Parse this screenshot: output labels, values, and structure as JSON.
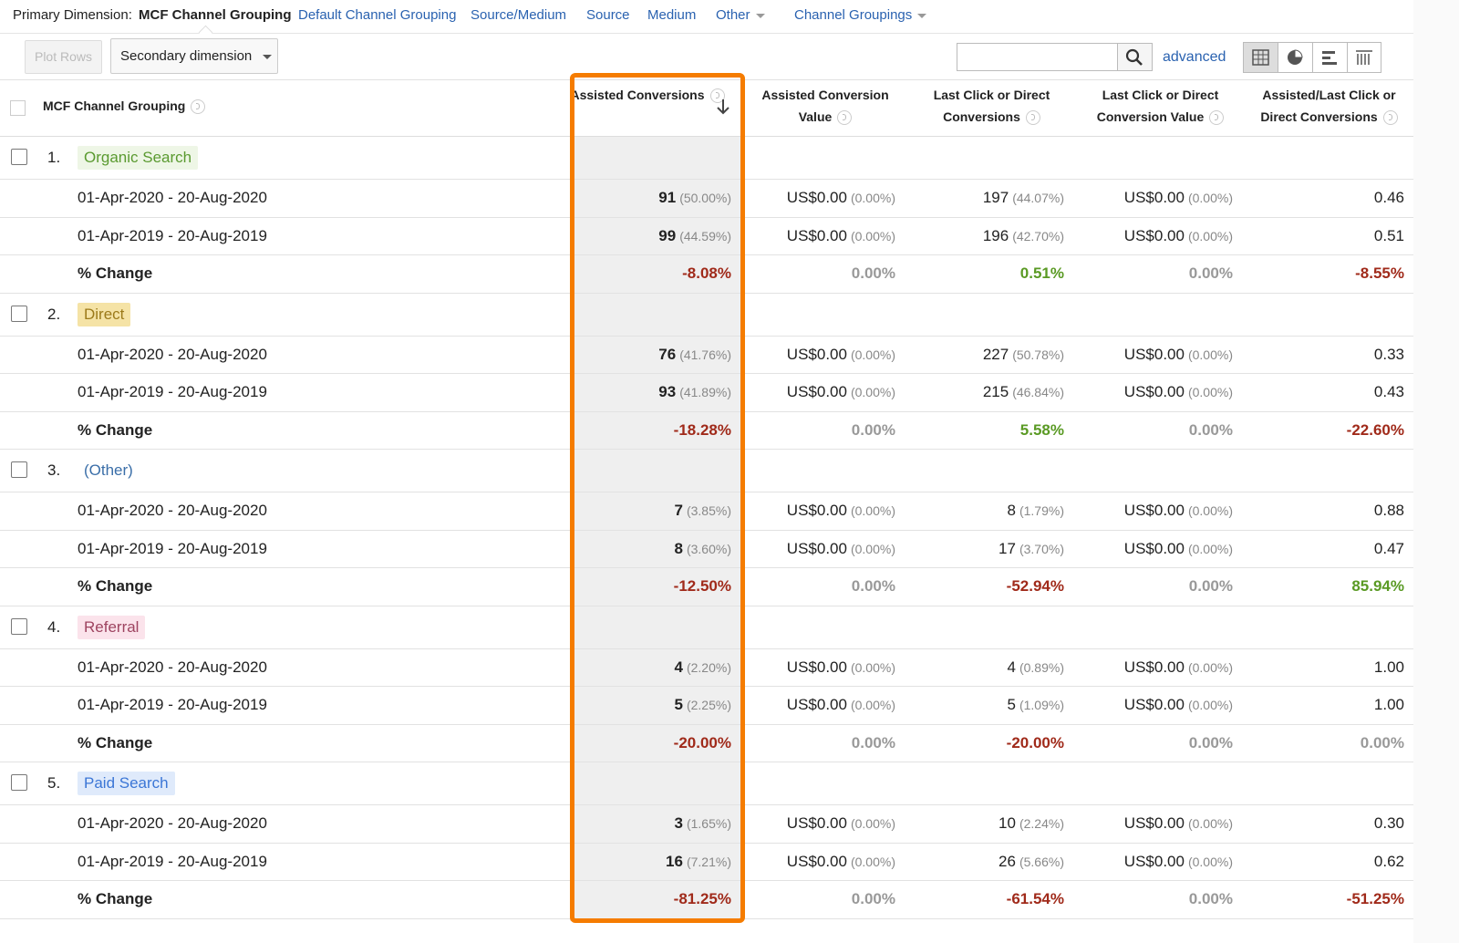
{
  "toolbar": {
    "primary_label": "Primary Dimension:",
    "active": "MCF Channel Grouping",
    "links": [
      "Default Channel Grouping",
      "Source/Medium",
      "Source",
      "Medium"
    ],
    "other": "Other",
    "channel_groupings": "Channel Groupings"
  },
  "controls": {
    "plot_rows": "Plot Rows",
    "secondary": "Secondary dimension",
    "advanced": "advanced"
  },
  "table": {
    "columns": [
      "MCF Channel Grouping",
      "Assisted Conversions",
      "Assisted Conversion Value",
      "Last Click or Direct Conversions",
      "Last Click or Direct Conversion Value",
      "Assisted/Last Click or Direct Conversions"
    ],
    "groups": [
      {
        "index": "1.",
        "name": "Organic Search",
        "badge_bg": "#eef6e6",
        "badge_color": "#5a9a30",
        "rows": [
          {
            "label": "01-Apr-2020 - 20-Aug-2020",
            "cells": [
              [
                "91",
                "(50.00%)"
              ],
              [
                "US$0.00",
                "(0.00%)"
              ],
              [
                "197",
                "(44.07%)"
              ],
              [
                "US$0.00",
                "(0.00%)"
              ],
              [
                "0.46"
              ]
            ]
          },
          {
            "label": "01-Apr-2019 - 20-Aug-2019",
            "cells": [
              [
                "99",
                "(44.59%)"
              ],
              [
                "US$0.00",
                "(0.00%)"
              ],
              [
                "196",
                "(42.70%)"
              ],
              [
                "US$0.00",
                "(0.00%)"
              ],
              [
                "0.51"
              ]
            ]
          }
        ],
        "change": {
          "label": "% Change",
          "cells": [
            "-8.08%",
            "0.00%",
            "0.51%",
            "0.00%",
            "-8.55%"
          ]
        }
      },
      {
        "index": "2.",
        "name": "Direct",
        "badge_bg": "#f5e3a6",
        "badge_color": "#9c7a1a",
        "rows": [
          {
            "label": "01-Apr-2020 - 20-Aug-2020",
            "cells": [
              [
                "76",
                "(41.76%)"
              ],
              [
                "US$0.00",
                "(0.00%)"
              ],
              [
                "227",
                "(50.78%)"
              ],
              [
                "US$0.00",
                "(0.00%)"
              ],
              [
                "0.33"
              ]
            ]
          },
          {
            "label": "01-Apr-2019 - 20-Aug-2019",
            "cells": [
              [
                "93",
                "(41.89%)"
              ],
              [
                "US$0.00",
                "(0.00%)"
              ],
              [
                "215",
                "(46.84%)"
              ],
              [
                "US$0.00",
                "(0.00%)"
              ],
              [
                "0.43"
              ]
            ]
          }
        ],
        "change": {
          "label": "% Change",
          "cells": [
            "-18.28%",
            "0.00%",
            "5.58%",
            "0.00%",
            "-22.60%"
          ]
        }
      },
      {
        "index": "3.",
        "name": "(Other)",
        "badge_bg": "transparent",
        "badge_color": "#3a6ea8",
        "rows": [
          {
            "label": "01-Apr-2020 - 20-Aug-2020",
            "cells": [
              [
                "7",
                "(3.85%)"
              ],
              [
                "US$0.00",
                "(0.00%)"
              ],
              [
                "8",
                "(1.79%)"
              ],
              [
                "US$0.00",
                "(0.00%)"
              ],
              [
                "0.88"
              ]
            ]
          },
          {
            "label": "01-Apr-2019 - 20-Aug-2019",
            "cells": [
              [
                "8",
                "(3.60%)"
              ],
              [
                "US$0.00",
                "(0.00%)"
              ],
              [
                "17",
                "(3.70%)"
              ],
              [
                "US$0.00",
                "(0.00%)"
              ],
              [
                "0.47"
              ]
            ]
          }
        ],
        "change": {
          "label": "% Change",
          "cells": [
            "-12.50%",
            "0.00%",
            "-52.94%",
            "0.00%",
            "85.94%"
          ]
        }
      },
      {
        "index": "4.",
        "name": "Referral",
        "badge_bg": "#fbe3eb",
        "badge_color": "#9e4460",
        "rows": [
          {
            "label": "01-Apr-2020 - 20-Aug-2020",
            "cells": [
              [
                "4",
                "(2.20%)"
              ],
              [
                "US$0.00",
                "(0.00%)"
              ],
              [
                "4",
                "(0.89%)"
              ],
              [
                "US$0.00",
                "(0.00%)"
              ],
              [
                "1.00"
              ]
            ]
          },
          {
            "label": "01-Apr-2019 - 20-Aug-2019",
            "cells": [
              [
                "5",
                "(2.25%)"
              ],
              [
                "US$0.00",
                "(0.00%)"
              ],
              [
                "5",
                "(1.09%)"
              ],
              [
                "US$0.00",
                "(0.00%)"
              ],
              [
                "1.00"
              ]
            ]
          }
        ],
        "change": {
          "label": "% Change",
          "cells": [
            "-20.00%",
            "0.00%",
            "-20.00%",
            "0.00%",
            "0.00%"
          ]
        }
      },
      {
        "index": "5.",
        "name": "Paid Search",
        "badge_bg": "#dfeafb",
        "badge_color": "#3b76d6",
        "rows": [
          {
            "label": "01-Apr-2020 - 20-Aug-2020",
            "cells": [
              [
                "3",
                "(1.65%)"
              ],
              [
                "US$0.00",
                "(0.00%)"
              ],
              [
                "10",
                "(2.24%)"
              ],
              [
                "US$0.00",
                "(0.00%)"
              ],
              [
                "0.30"
              ]
            ]
          },
          {
            "label": "01-Apr-2019 - 20-Aug-2019",
            "cells": [
              [
                "16",
                "(7.21%)"
              ],
              [
                "US$0.00",
                "(0.00%)"
              ],
              [
                "26",
                "(5.66%)"
              ],
              [
                "US$0.00",
                "(0.00%)"
              ],
              [
                "0.62"
              ]
            ]
          }
        ],
        "change": {
          "label": "% Change",
          "cells": [
            "-81.25%",
            "0.00%",
            "-61.54%",
            "0.00%",
            "-51.25%"
          ]
        }
      }
    ]
  }
}
